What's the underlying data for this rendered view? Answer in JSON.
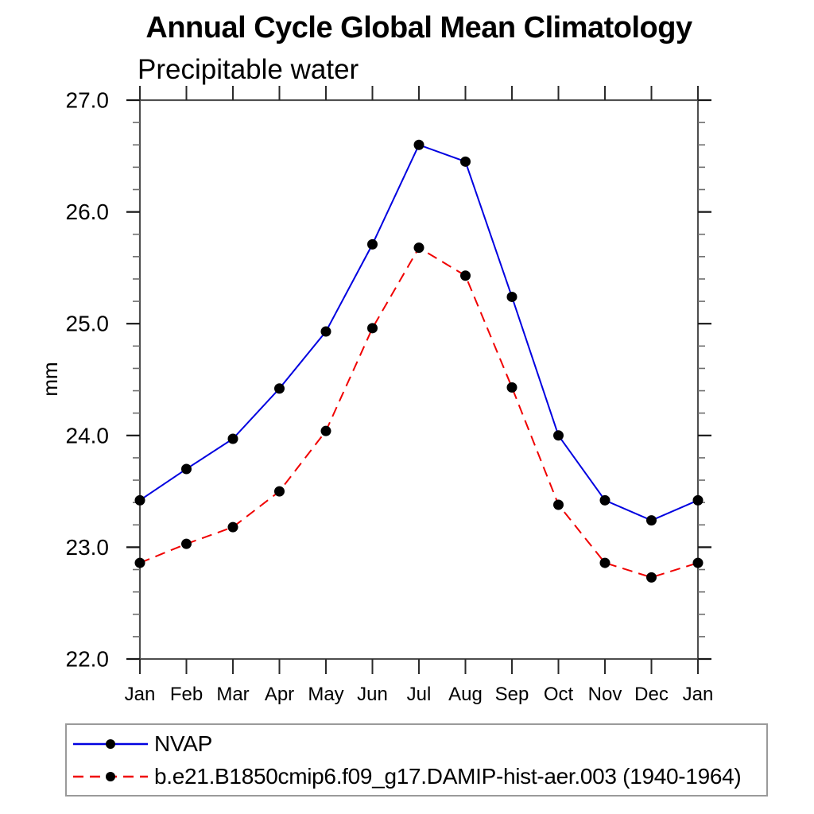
{
  "title": "Annual Cycle Global Mean Climatology",
  "subtitle": "Precipitable water",
  "ylabel": "mm",
  "legend": {
    "entries": [
      {
        "label": "NVAP",
        "color": "#0000e0",
        "dash": "solid",
        "marker": "black-dot"
      },
      {
        "label": "b.e21.B1850cmip6.f09_g17.DAMIP-hist-aer.003 (1940-1964)",
        "color": "#f00000",
        "dash": "dashed",
        "marker": "black-dot"
      }
    ],
    "marker_color": "#000000"
  },
  "chart_data": {
    "type": "line",
    "title": "Annual Cycle Global Mean Climatology",
    "subtitle": "Precipitable water",
    "xlabel": "",
    "ylabel": "mm",
    "categories": [
      "Jan",
      "Feb",
      "Mar",
      "Apr",
      "May",
      "Jun",
      "Jul",
      "Aug",
      "Sep",
      "Oct",
      "Nov",
      "Dec",
      "Jan"
    ],
    "series": [
      {
        "name": "NVAP",
        "color": "#0000e0",
        "line_style": "solid",
        "marker": "filled-circle",
        "marker_color": "#000000",
        "values": [
          23.42,
          23.7,
          23.97,
          24.42,
          24.93,
          25.71,
          26.6,
          26.45,
          25.24,
          24.0,
          23.42,
          23.24,
          23.42
        ]
      },
      {
        "name": "b.e21.B1850cmip6.f09_g17.DAMIP-hist-aer.003 (1940-1964)",
        "color": "#f00000",
        "line_style": "dashed",
        "marker": "filled-circle",
        "marker_color": "#000000",
        "values": [
          22.86,
          23.03,
          23.18,
          23.5,
          24.04,
          24.96,
          25.68,
          25.43,
          24.43,
          23.38,
          22.86,
          22.73,
          22.86
        ]
      }
    ],
    "ylim": [
      22.0,
      27.0
    ],
    "ytick_major": [
      22.0,
      23.0,
      24.0,
      25.0,
      26.0,
      27.0
    ],
    "ytick_labels": [
      "22.0",
      "23.0",
      "24.0",
      "25.0",
      "26.0",
      "27.0"
    ],
    "ytick_minor_step": 0.2,
    "grid": false,
    "frame": "box-with-outward-ticks",
    "legend_position": "bottom-left-box",
    "axis_color": "#4f4f4f"
  }
}
